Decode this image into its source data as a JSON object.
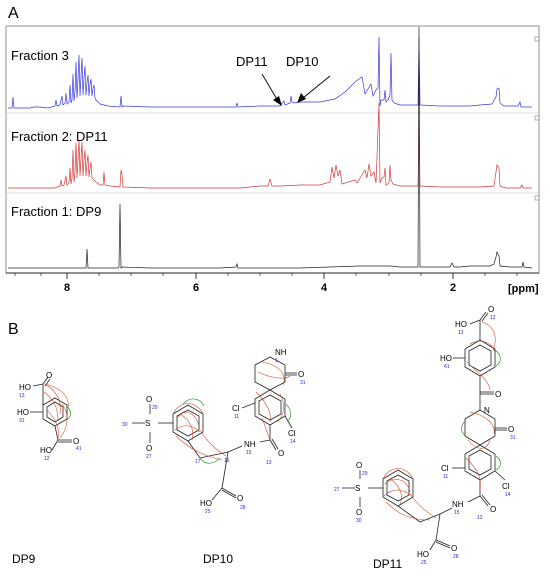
{
  "panels": {
    "a": "A",
    "b": "B"
  },
  "nmr": {
    "fraction3": "Fraction 3",
    "fraction2": "Fraction 2: DP11",
    "fraction1": "Fraction 1: DP9",
    "arrow_dp11": "DP11",
    "arrow_dp10": "DP10",
    "ticks": [
      "8",
      "6",
      "4",
      "2"
    ],
    "unit": "[ppm]",
    "colors": {
      "fraction3": "#3a3adf",
      "fraction2": "#d43a3a",
      "fraction1": "#222222"
    }
  },
  "structures": {
    "dp9": {
      "title": "DP9",
      "atoms": [
        "O",
        "HO",
        "HO",
        "O",
        "HO"
      ],
      "numbers": [
        "13",
        "31",
        "12",
        "41"
      ]
    },
    "dp10": {
      "title": "DP10",
      "atoms": [
        "NH",
        "O",
        "Cl",
        "Cl",
        "NH",
        "O",
        "S",
        "O",
        "O",
        "O",
        "HO"
      ],
      "numbers": [
        "1",
        "31",
        "11",
        "14",
        "15",
        "13",
        "29",
        "30",
        "27",
        "16",
        "17",
        "28",
        "25"
      ]
    },
    "dp11": {
      "title": "DP11",
      "atoms": [
        "O",
        "HO",
        "HO",
        "O",
        "N",
        "O",
        "Cl",
        "Cl",
        "NH",
        "O",
        "S",
        "O",
        "O",
        "O",
        "HO"
      ],
      "numbers": [
        "12",
        "13",
        "41",
        "31",
        "11",
        "14",
        "15",
        "13",
        "29",
        "27",
        "30",
        "28",
        "25"
      ]
    }
  }
}
